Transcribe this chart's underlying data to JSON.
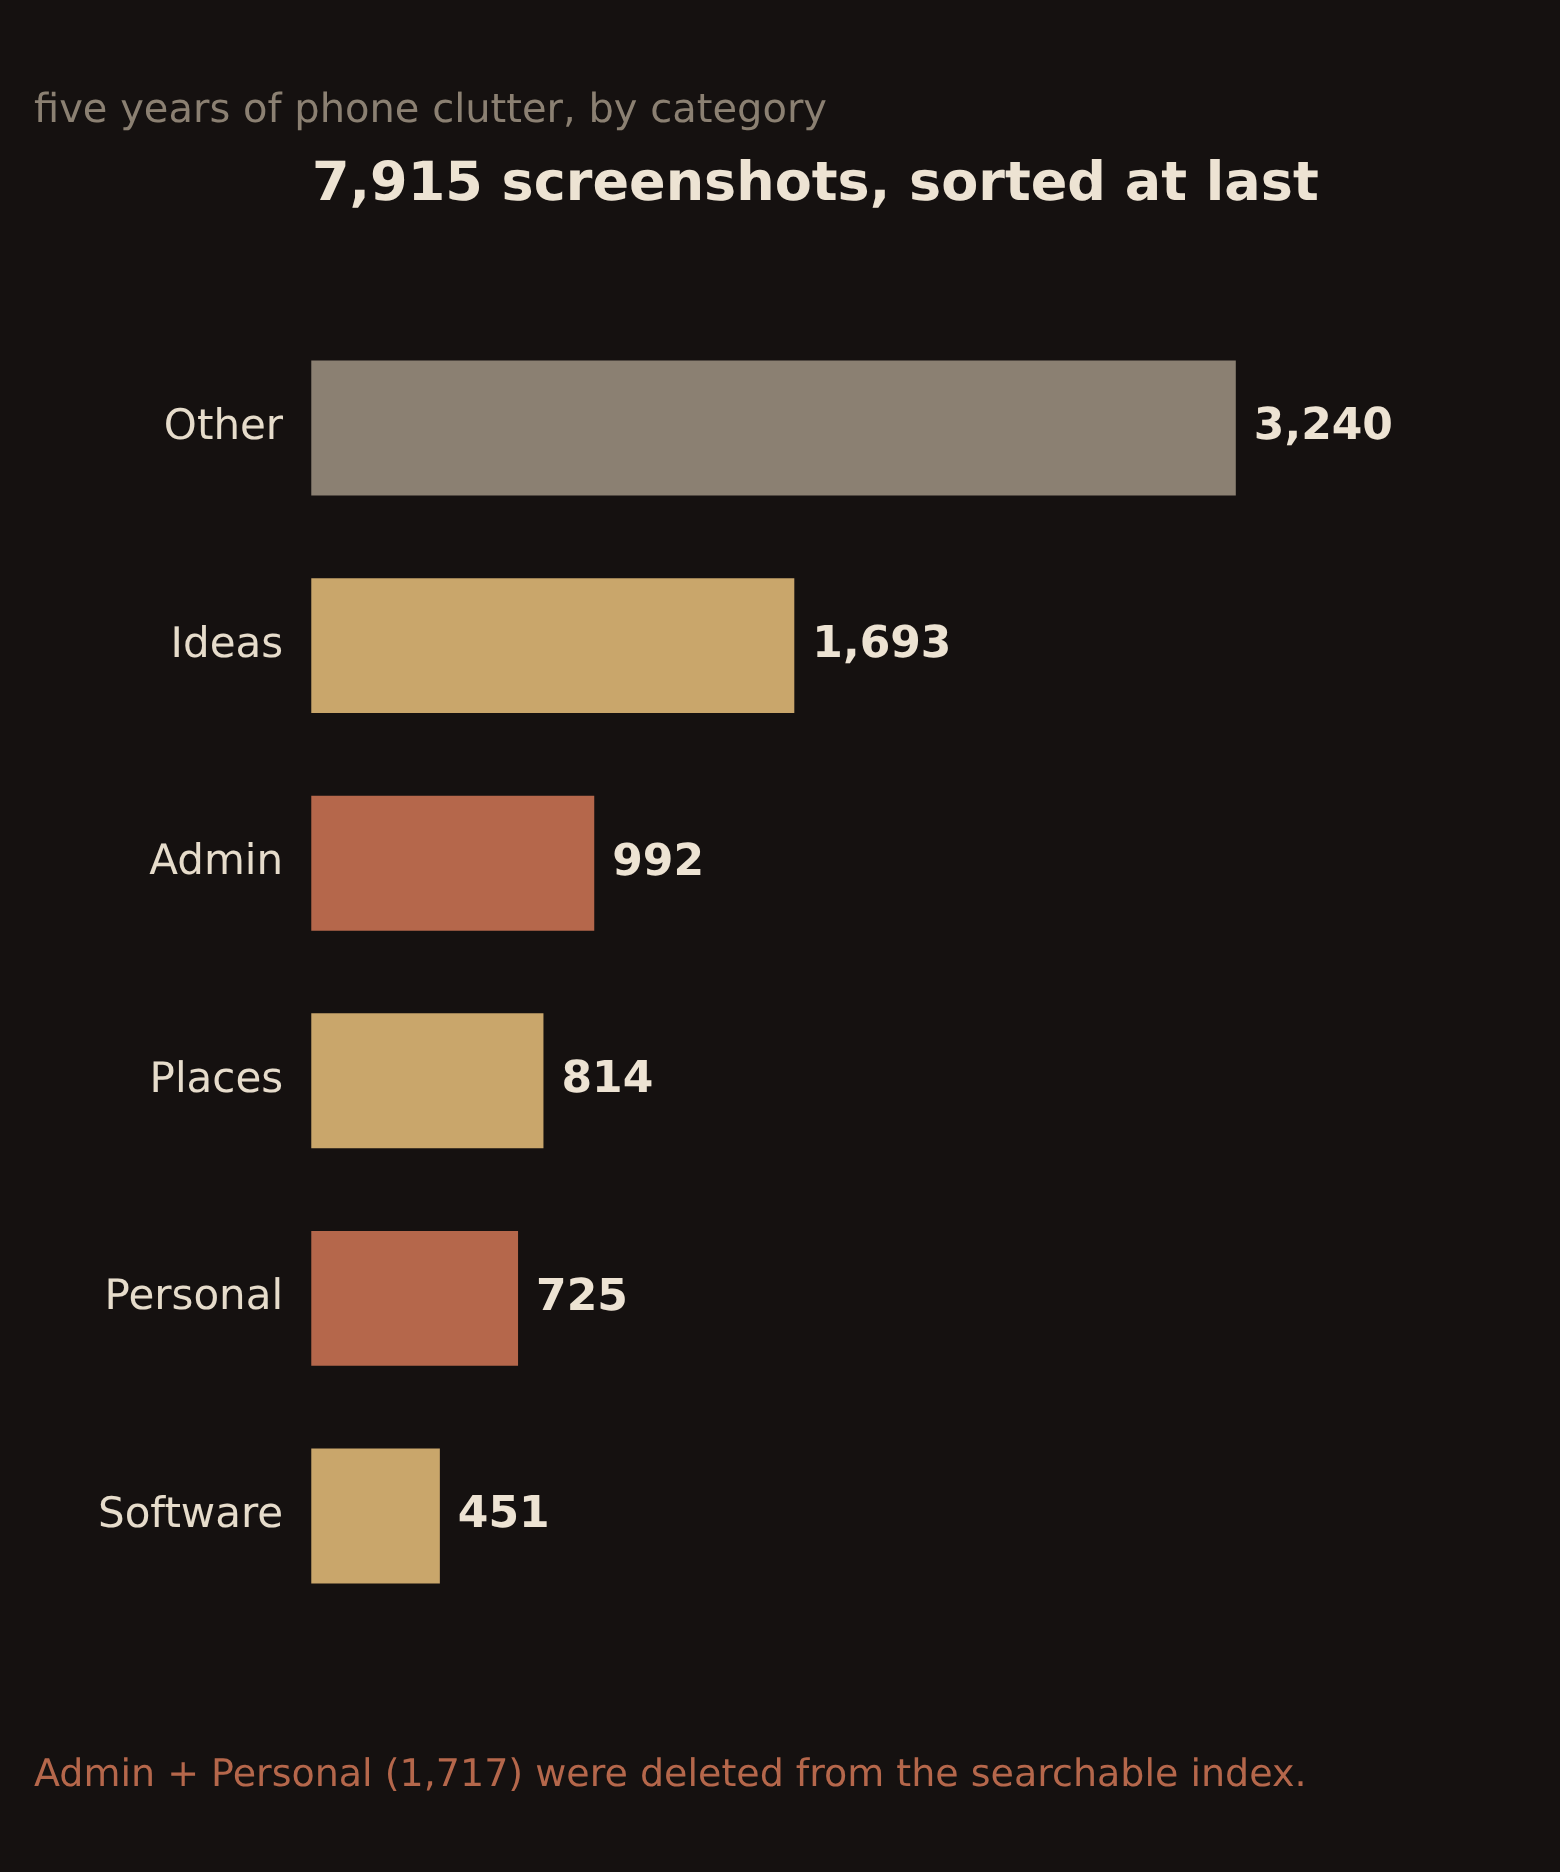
{
  "chart_data": {
    "type": "bar",
    "orientation": "horizontal",
    "title": "7,915 screenshots, sorted at last",
    "subtitle": "five years of phone clutter, by category",
    "categories": [
      "Other",
      "Ideas",
      "Admin",
      "Places",
      "Personal",
      "Software"
    ],
    "values": [
      3240,
      1693,
      992,
      814,
      725,
      451
    ],
    "colors": [
      "#8b8072",
      "#c9a66b",
      "#b5674b",
      "#c9a66b",
      "#b5674b",
      "#c9a66b"
    ],
    "value_labels": [
      "3,240",
      "1,693",
      "992",
      "814",
      "725",
      "451"
    ],
    "tick_labels": "y",
    "annotations": [
      "Admin + Personal (1,717) were deleted from the searchable index."
    ]
  }
}
